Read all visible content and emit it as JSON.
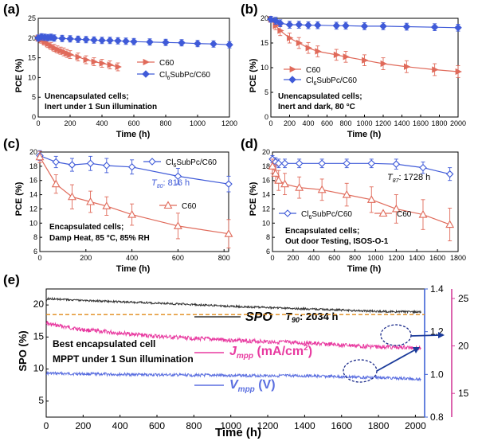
{
  "colors": {
    "c60": "#e06a5a",
    "sub": "#3f5ad8",
    "spo": "#333333",
    "jmpp": "#e83aa0",
    "vmpp": "#5b6fe0",
    "ref": "#e08a18",
    "axis_right": "#3f63d6",
    "axis_right2": "#d43f9a"
  },
  "chart_data": [
    {
      "panel": "(a)",
      "type": "line",
      "xlabel": "Time (h)",
      "ylabel": "PCE (%)",
      "xlim": [
        0,
        1200
      ],
      "ylim": [
        0,
        25
      ],
      "xticks": [
        "0",
        "200",
        "400",
        "600",
        "800",
        "1000",
        "1200"
      ],
      "yticks": [
        "0",
        "5",
        "10",
        "15",
        "20",
        "25"
      ],
      "legend_position": "middle-left",
      "note": [
        "Unencapsulated cells;",
        "Inert under 1 Sun illumination"
      ],
      "series": [
        {
          "name": "C60",
          "marker": "tri-right",
          "x": [
            0,
            20,
            40,
            60,
            80,
            100,
            120,
            140,
            160,
            180,
            200,
            250,
            300,
            350,
            400,
            450,
            500
          ],
          "y": [
            20.0,
            19.5,
            19.0,
            18.5,
            18.0,
            17.5,
            17.1,
            16.8,
            16.5,
            16.1,
            15.8,
            15.2,
            14.5,
            14.0,
            13.6,
            13.2,
            12.7
          ],
          "err": [
            0.8,
            0.8,
            0.8,
            0.9,
            0.9,
            0.9,
            0.9,
            0.9,
            1.0,
            1.0,
            1.0,
            1.0,
            1.0,
            1.0,
            1.0,
            1.0,
            1.0
          ]
        },
        {
          "name": "Cl6SubPc/C60",
          "marker": "diamond",
          "x": [
            0,
            20,
            40,
            60,
            80,
            100,
            150,
            200,
            250,
            300,
            350,
            400,
            450,
            500,
            550,
            600,
            700,
            800,
            900,
            1000,
            1100,
            1200
          ],
          "y": [
            20.0,
            20.3,
            20.2,
            20.1,
            20.2,
            20.0,
            19.9,
            19.8,
            19.7,
            19.6,
            19.5,
            19.4,
            19.4,
            19.3,
            19.2,
            19.1,
            19.0,
            18.9,
            18.8,
            18.6,
            18.5,
            18.3
          ],
          "err": [
            0.8,
            0.8,
            0.8,
            0.8,
            0.8,
            0.8,
            0.8,
            0.8,
            0.8,
            0.8,
            0.8,
            0.8,
            0.8,
            0.8,
            0.8,
            0.8,
            0.8,
            0.8,
            0.8,
            0.8,
            0.8,
            0.8
          ]
        }
      ]
    },
    {
      "panel": "(b)",
      "type": "line",
      "xlabel": "Time (h)",
      "ylabel": "PCE (%)",
      "xlim": [
        0,
        2000
      ],
      "ylim": [
        0,
        20
      ],
      "xticks": [
        "0",
        "200",
        "400",
        "600",
        "800",
        "1000",
        "1200",
        "1400",
        "1600",
        "1800",
        "2000"
      ],
      "yticks": [
        "0",
        "5",
        "10",
        "15",
        "20"
      ],
      "legend_position": "middle-left",
      "note": [
        "Unencapsulated cells;",
        "Inert and dark, 80 °C"
      ],
      "series": [
        {
          "name": "C60",
          "marker": "tri-right",
          "x": [
            0,
            50,
            100,
            200,
            300,
            400,
            500,
            700,
            800,
            1000,
            1200,
            1450,
            1750,
            2000
          ],
          "y": [
            19.8,
            18.5,
            17.5,
            16.0,
            15.0,
            14.0,
            13.3,
            12.6,
            12.2,
            11.5,
            10.8,
            10.2,
            9.6,
            9.2
          ],
          "err": [
            0.6,
            0.8,
            1.0,
            1.0,
            1.1,
            1.1,
            1.1,
            1.1,
            1.1,
            1.1,
            1.2,
            1.2,
            1.2,
            1.2
          ]
        },
        {
          "name": "Cl6SubPc/C60",
          "marker": "diamond",
          "x": [
            0,
            50,
            100,
            200,
            300,
            400,
            500,
            700,
            800,
            1000,
            1200,
            1450,
            1750,
            2000
          ],
          "y": [
            19.8,
            19.5,
            19.0,
            18.7,
            18.7,
            18.6,
            18.6,
            18.5,
            18.5,
            18.4,
            18.4,
            18.3,
            18.2,
            18.1
          ],
          "err": [
            0.6,
            0.7,
            0.7,
            0.7,
            0.7,
            0.7,
            0.7,
            0.7,
            0.7,
            0.7,
            0.7,
            0.7,
            0.7,
            0.7
          ]
        }
      ]
    },
    {
      "panel": "(c)",
      "type": "line",
      "xlabel": "Time (h)",
      "ylabel": "PCE (%)",
      "xlim": [
        0,
        820
      ],
      "ylim": [
        6,
        20
      ],
      "xticks": [
        "0",
        "200",
        "400",
        "600",
        "800"
      ],
      "yticks": [
        "6",
        "8",
        "10",
        "12",
        "14",
        "16",
        "18",
        "20"
      ],
      "legend_position": "right",
      "annotation": "T80: 816 h",
      "note": [
        "Encapsulated cells;",
        "Damp Heat, 85 °C, 85% RH"
      ],
      "series": [
        {
          "name": "Cl6SubPc/C60",
          "marker": "diamond-open",
          "x": [
            0,
            70,
            140,
            220,
            290,
            400,
            600,
            820
          ],
          "y": [
            19.5,
            18.6,
            18.2,
            18.4,
            18.1,
            17.9,
            16.6,
            15.5
          ],
          "err": [
            0.7,
            0.8,
            0.9,
            1.0,
            1.0,
            1.0,
            1.1,
            1.1
          ]
        },
        {
          "name": "C60",
          "marker": "tri-open",
          "x": [
            0,
            70,
            140,
            220,
            290,
            400,
            600,
            820
          ],
          "y": [
            19.3,
            15.5,
            13.7,
            13.0,
            12.4,
            11.2,
            9.6,
            8.5
          ],
          "err": [
            0.8,
            1.3,
            1.7,
            1.5,
            1.3,
            1.5,
            1.8,
            2.0
          ]
        }
      ]
    },
    {
      "panel": "(d)",
      "type": "line",
      "xlabel": "Time (h)",
      "ylabel": "PCE (%)",
      "xlim": [
        0,
        1800
      ],
      "ylim": [
        6,
        20
      ],
      "xticks": [
        "0",
        "200",
        "400",
        "600",
        "800",
        "1000",
        "1200",
        "1400",
        "1600",
        "1800"
      ],
      "yticks": [
        "6",
        "8",
        "10",
        "12",
        "14",
        "16",
        "18",
        "20"
      ],
      "legend_position": "lower-left",
      "annotation": "T87: 1728 h",
      "note": [
        "Encapsulated cells;",
        "Out door Testing, ISOS-O-1"
      ],
      "series": [
        {
          "name": "Cl6SubPc/C60",
          "marker": "diamond-open",
          "x": [
            0,
            30,
            60,
            120,
            260,
            480,
            720,
            960,
            1200,
            1460,
            1720
          ],
          "y": [
            19.0,
            18.6,
            18.4,
            18.4,
            18.4,
            18.4,
            18.4,
            18.4,
            18.3,
            17.8,
            16.9
          ],
          "err": [
            0.5,
            0.6,
            0.6,
            0.6,
            0.6,
            0.6,
            0.6,
            0.6,
            0.7,
            0.8,
            0.9
          ]
        },
        {
          "name": "C60",
          "marker": "tri-open",
          "x": [
            0,
            30,
            60,
            120,
            260,
            480,
            720,
            960,
            1200,
            1460,
            1720
          ],
          "y": [
            18.0,
            17.0,
            16.0,
            15.5,
            15.0,
            14.7,
            14.0,
            13.3,
            12.0,
            11.2,
            9.8
          ],
          "err": [
            1.0,
            1.2,
            1.4,
            1.5,
            1.5,
            1.5,
            1.6,
            1.8,
            2.0,
            2.1,
            2.3
          ]
        }
      ]
    },
    {
      "panel": "(e)",
      "type": "line",
      "xlabel": "Time (h)",
      "ylabel": "SPO (%)",
      "xlim": [
        0,
        2050
      ],
      "ylim": [
        2.5,
        22.5
      ],
      "xticks": [
        "0",
        "200",
        "400",
        "600",
        "800",
        "1000",
        "1200",
        "1400",
        "1600",
        "1800",
        "2000"
      ],
      "yticks": [
        "5",
        "10",
        "15",
        "20"
      ],
      "right_axis_1": {
        "label": "V_mpp (V)",
        "ylim": [
          0.8,
          1.4
        ],
        "ticks": [
          "0.8",
          "1.0",
          "1.2",
          "1.4"
        ]
      },
      "right_axis_2": {
        "label": "J_mpp (mA/cm2)",
        "ylim": [
          12.5,
          26
        ],
        "ticks": [
          "15",
          "20",
          "25"
        ]
      },
      "annotation": "T90: 2034 h",
      "note": [
        "Best encapsulated cell",
        "MPPT under 1 Sun illumination"
      ],
      "reference_line_y": 18.5,
      "series": [
        {
          "name": "SPO",
          "x": [
            0,
            10,
            200,
            600,
            1000,
            1400,
            1800,
            2030
          ],
          "y": [
            20.5,
            21.0,
            20.7,
            20.3,
            19.8,
            19.4,
            19.0,
            18.9
          ]
        },
        {
          "name": "Jmpp (mA/cm2)",
          "axis": "right_2",
          "x": [
            0,
            10,
            200,
            600,
            1000,
            1400,
            1800,
            2030
          ],
          "y": [
            22.6,
            22.3,
            21.7,
            21.0,
            20.6,
            20.3,
            19.9,
            19.8
          ]
        },
        {
          "name": "Vmpp (V)",
          "axis": "right_1",
          "x": [
            0,
            200,
            600,
            1000,
            1400,
            1800,
            2030
          ],
          "y": [
            1.005,
            1.002,
            0.998,
            0.995,
            0.993,
            0.985,
            0.978
          ]
        }
      ]
    }
  ],
  "labels": {
    "c": {
      "t_sym": "T",
      "t_sub": "80",
      "t_val": ": 816 h"
    },
    "d": {
      "t_sym": "T",
      "t_sub": "87",
      "t_val": ": 1728 h"
    },
    "e": {
      "t_sym": "T",
      "t_sub": "90",
      "t_val": ": 2034 h",
      "spo": "SPO",
      "j_sym": "J",
      "j_sub": "mpp",
      "j_unit": " (mA/cm",
      "j_sup": "2",
      "j_close": ")",
      "v_sym": "V",
      "v_sub": "mpp",
      "v_unit": " (V)"
    },
    "legend_sub": {
      "pre": "Cl",
      "sub": "6",
      "post": "SubPc/C60",
      "c60": "C60"
    }
  }
}
